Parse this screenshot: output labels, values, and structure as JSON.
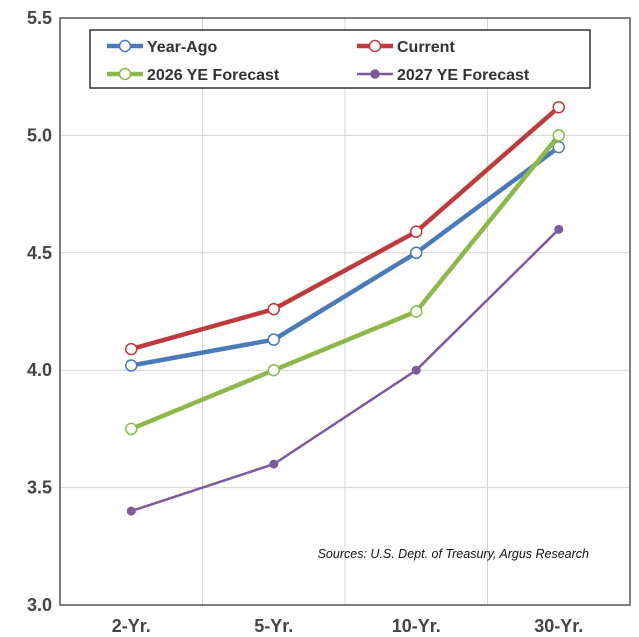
{
  "chart_data": {
    "type": "line",
    "categories": [
      "2-Yr.",
      "5-Yr.",
      "10-Yr.",
      "30-Yr."
    ],
    "ylim": [
      3.0,
      5.5
    ],
    "yticks": [
      "3.0",
      "3.5",
      "4.0",
      "4.5",
      "5.0",
      "5.5"
    ],
    "grid": true,
    "legend_position": "top",
    "series": [
      {
        "name": "Year-Ago",
        "values": [
          4.02,
          4.13,
          4.5,
          4.95
        ],
        "color": "#4a7ab8",
        "marker": "hollow-circle"
      },
      {
        "name": "Current",
        "values": [
          4.09,
          4.26,
          4.59,
          5.12
        ],
        "color": "#c0393b",
        "marker": "hollow-circle"
      },
      {
        "name": "2026 YE Forecast",
        "values": [
          3.75,
          4.0,
          4.25,
          5.0
        ],
        "color": "#8db948",
        "marker": "hollow-circle"
      },
      {
        "name": "2027 YE Forecast",
        "values": [
          3.4,
          3.6,
          4.0,
          4.6
        ],
        "color": "#7b5a9e",
        "marker": "filled-circle"
      }
    ],
    "annotation": "Sources: U.S. Dept. of Treasury, Argus Research"
  }
}
